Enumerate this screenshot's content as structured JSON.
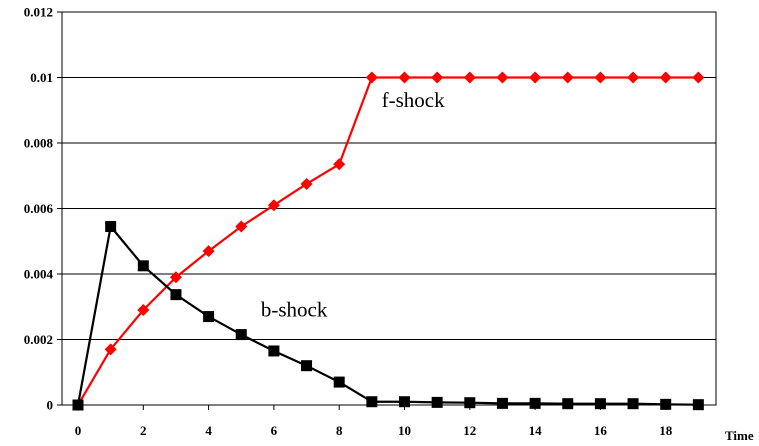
{
  "chart_data": {
    "type": "line",
    "title": "",
    "xlabel": "Time",
    "ylabel": "",
    "xlim": [
      0,
      19
    ],
    "ylim": [
      0,
      0.012
    ],
    "x_ticks": [
      0,
      2,
      4,
      6,
      8,
      10,
      12,
      14,
      16,
      18
    ],
    "y_ticks": [
      0,
      0.002,
      0.004,
      0.006,
      0.008,
      0.01,
      0.012
    ],
    "y_tick_labels": [
      "0",
      "0.002",
      "0.004",
      "0.006",
      "0.008",
      "0.01",
      "0.012"
    ],
    "grid": "horizontal",
    "legend": "none",
    "x": [
      0,
      1,
      2,
      3,
      4,
      5,
      6,
      7,
      8,
      9,
      10,
      11,
      12,
      13,
      14,
      15,
      16,
      17,
      18,
      19
    ],
    "series": [
      {
        "name": "f-shock",
        "color": "#ff0000",
        "marker": "diamond",
        "values": [
          0,
          0.0017,
          0.0029,
          0.0039,
          0.0047,
          0.00545,
          0.0061,
          0.00675,
          0.00735,
          0.01,
          0.01,
          0.01,
          0.01,
          0.01,
          0.01,
          0.01,
          0.01,
          0.01,
          0.01,
          0.01
        ]
      },
      {
        "name": "b-shock",
        "color": "#000000",
        "marker": "square",
        "values": [
          0,
          0.00545,
          0.00425,
          0.00337,
          0.0027,
          0.00215,
          0.00165,
          0.0012,
          0.0007,
          0.0001,
          0.0001,
          8e-05,
          7e-05,
          5e-05,
          5e-05,
          4e-05,
          4e-05,
          4e-05,
          2e-05,
          1e-05
        ]
      }
    ],
    "annotations": [
      {
        "series": "f-shock",
        "text": "f-shock",
        "x": 9.3,
        "y": 0.0091
      },
      {
        "series": "b-shock",
        "text": "b-shock",
        "x": 5.6,
        "y": 0.0027
      }
    ]
  }
}
